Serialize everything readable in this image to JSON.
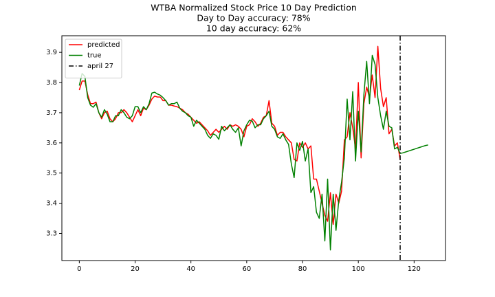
{
  "chart_data": {
    "type": "line",
    "title": [
      "WTBA Normalized Stock Price 10 Day Prediction",
      "Day to Day accuracy: 78%",
      "10 day accuracy: 62%"
    ],
    "x": [
      0,
      1,
      2,
      3,
      4,
      5,
      6,
      7,
      8,
      9,
      10,
      11,
      12,
      13,
      14,
      15,
      16,
      17,
      18,
      19,
      20,
      21,
      22,
      23,
      24,
      25,
      26,
      27,
      28,
      29,
      30,
      31,
      32,
      33,
      34,
      35,
      36,
      37,
      38,
      39,
      40,
      41,
      42,
      43,
      44,
      45,
      46,
      47,
      48,
      49,
      50,
      51,
      52,
      53,
      54,
      55,
      56,
      57,
      58,
      59,
      60,
      61,
      62,
      63,
      64,
      65,
      66,
      67,
      68,
      69,
      70,
      71,
      72,
      73,
      74,
      75,
      76,
      77,
      78,
      79,
      80,
      81,
      82,
      83,
      84,
      85,
      86,
      87,
      88,
      89,
      90,
      91,
      92,
      93,
      94,
      95,
      96,
      97,
      98,
      99,
      100,
      101,
      102,
      103,
      104,
      105,
      106,
      107,
      108,
      109,
      110,
      111,
      112,
      113,
      114,
      115,
      116,
      117,
      118,
      119,
      120,
      121,
      122,
      123,
      124,
      125
    ],
    "series": [
      {
        "name": "predicted",
        "color": "#ff0000",
        "values": [
          3.775,
          3.805,
          3.805,
          3.76,
          3.73,
          3.73,
          3.735,
          3.7,
          3.68,
          3.7,
          3.705,
          3.68,
          3.67,
          3.68,
          3.7,
          3.7,
          3.71,
          3.7,
          3.685,
          3.67,
          3.69,
          3.71,
          3.69,
          3.715,
          3.71,
          3.725,
          3.745,
          3.755,
          3.752,
          3.752,
          3.74,
          3.74,
          3.725,
          3.725,
          3.722,
          3.72,
          3.715,
          3.71,
          3.7,
          3.695,
          3.685,
          3.675,
          3.665,
          3.67,
          3.66,
          3.65,
          3.64,
          3.625,
          3.635,
          3.645,
          3.635,
          3.645,
          3.655,
          3.645,
          3.66,
          3.655,
          3.66,
          3.655,
          3.645,
          3.62,
          3.655,
          3.66,
          3.68,
          3.67,
          3.655,
          3.665,
          3.685,
          3.69,
          3.74,
          3.665,
          3.655,
          3.625,
          3.635,
          3.635,
          3.62,
          3.61,
          3.6,
          3.545,
          3.54,
          3.6,
          3.585,
          3.6,
          3.58,
          3.59,
          3.48,
          3.48,
          3.44,
          3.4,
          3.36,
          3.34,
          3.435,
          3.33,
          3.43,
          3.4,
          3.44,
          3.61,
          3.62,
          3.7,
          3.65,
          3.58,
          3.8,
          3.55,
          3.73,
          3.785,
          3.75,
          3.825,
          3.75,
          3.92,
          3.78,
          3.72,
          3.75,
          3.63,
          3.645,
          3.59,
          3.6,
          3.545,
          null,
          null,
          null,
          null,
          null,
          null,
          null,
          null,
          null,
          null
        ]
      },
      {
        "name": "true",
        "color": "#008000",
        "values": [
          3.79,
          3.83,
          3.82,
          3.75,
          3.725,
          3.718,
          3.73,
          3.7,
          3.685,
          3.71,
          3.695,
          3.67,
          3.67,
          3.69,
          3.69,
          3.71,
          3.7,
          3.685,
          3.68,
          3.69,
          3.72,
          3.72,
          3.7,
          3.72,
          3.71,
          3.73,
          3.765,
          3.768,
          3.762,
          3.758,
          3.75,
          3.74,
          3.725,
          3.73,
          3.73,
          3.735,
          3.715,
          3.705,
          3.7,
          3.69,
          3.685,
          3.655,
          3.675,
          3.665,
          3.655,
          3.645,
          3.625,
          3.615,
          3.63,
          3.625,
          3.612,
          3.655,
          3.64,
          3.65,
          3.66,
          3.645,
          3.635,
          3.65,
          3.59,
          3.64,
          3.66,
          3.675,
          3.672,
          3.65,
          3.66,
          3.66,
          3.68,
          3.69,
          3.705,
          3.655,
          3.645,
          3.62,
          3.615,
          3.63,
          3.61,
          3.595,
          3.53,
          3.485,
          3.6,
          3.575,
          3.605,
          3.54,
          3.58,
          3.435,
          3.455,
          3.37,
          3.35,
          3.43,
          3.275,
          3.48,
          3.245,
          3.43,
          3.31,
          3.41,
          3.47,
          3.55,
          3.745,
          3.61,
          3.77,
          3.54,
          3.705,
          3.57,
          3.76,
          3.87,
          3.73,
          3.89,
          3.86,
          3.75,
          3.69,
          3.645,
          3.705,
          3.655,
          3.65,
          3.58,
          3.585,
          3.565,
          3.567,
          3.57,
          3.573,
          3.576,
          3.579,
          3.582,
          3.585,
          3.588,
          3.591,
          3.593
        ]
      }
    ],
    "vlines": [
      {
        "x": 115,
        "label": "april 27",
        "color": "#000000",
        "style": "dashdot"
      }
    ],
    "xlim": [
      -6.25,
      131.25
    ],
    "xticks": [
      0,
      20,
      40,
      60,
      80,
      100,
      120
    ],
    "ylim": [
      3.21,
      3.955
    ],
    "yticks": [
      3.3,
      3.4,
      3.5,
      3.6,
      3.7,
      3.8,
      3.9
    ],
    "legend": "upper left",
    "grid": false
  }
}
